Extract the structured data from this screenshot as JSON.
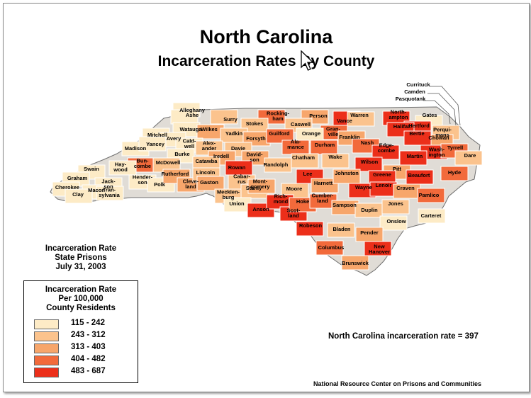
{
  "title": "North Carolina",
  "subtitle": "Incarceration Rates By County",
  "caption": {
    "line1": "Incarceration Rate",
    "line2": "State Prisons",
    "line3": "July 31, 2003"
  },
  "legend": {
    "line1": "Incarceration Rate",
    "line2": "Per 100,000",
    "line3": "County Residents",
    "items": [
      {
        "label": "115 - 242",
        "color": "#fdebc6"
      },
      {
        "label": "243 - 312",
        "color": "#fbc38d"
      },
      {
        "label": "313 - 403",
        "color": "#f7a66b"
      },
      {
        "label": "404 - 482",
        "color": "#f26a3b"
      },
      {
        "label": "483 - 687",
        "color": "#ec2f1a"
      }
    ]
  },
  "state_rate": "North Carolina incarceration rate = 397",
  "source": "National Resource Center on Prisons and Communities",
  "counties": [
    {
      "name": "Currituck",
      "class": 1
    },
    {
      "name": "Camden",
      "class": 1
    },
    {
      "name": "Pasquotank",
      "class": 1
    },
    {
      "name": "Alleghany",
      "class": 1
    },
    {
      "name": "Ashe",
      "class": 1
    },
    {
      "name": "Surry",
      "class": 2
    },
    {
      "name": "Rocking-\nham",
      "class": 4
    },
    {
      "name": "Person",
      "class": 3
    },
    {
      "name": "Vance",
      "class": 5
    },
    {
      "name": "Warren",
      "class": 2
    },
    {
      "name": "North-\nampton",
      "class": 5
    },
    {
      "name": "Gates",
      "class": 1
    },
    {
      "name": "Perqui-\nmans",
      "class": 2
    },
    {
      "name": "Chowan",
      "class": 3
    },
    {
      "name": "Hertford",
      "class": 5
    },
    {
      "name": "Halifax",
      "class": 5
    },
    {
      "name": "Bertie",
      "class": 5
    },
    {
      "name": "Wash-\nington",
      "class": 5
    },
    {
      "name": "Tyrrell",
      "class": 4
    },
    {
      "name": "Dare",
      "class": 2
    },
    {
      "name": "Hyde",
      "class": 4
    },
    {
      "name": "Watauga",
      "class": 1
    },
    {
      "name": "Wilkes",
      "class": 3
    },
    {
      "name": "Stokes",
      "class": 2
    },
    {
      "name": "Caswell",
      "class": 2
    },
    {
      "name": "Gran-\nville",
      "class": 4
    },
    {
      "name": "Franklin",
      "class": 3
    },
    {
      "name": "Orange",
      "class": 1
    },
    {
      "name": "Mitchell",
      "class": 1
    },
    {
      "name": "Avery",
      "class": 1
    },
    {
      "name": "Yadkin",
      "class": 2
    },
    {
      "name": "Forsyth",
      "class": 3
    },
    {
      "name": "Guilford",
      "class": 4
    },
    {
      "name": "Ala-\nmance",
      "class": 4
    },
    {
      "name": "Durham",
      "class": 4
    },
    {
      "name": "Nash",
      "class": 4
    },
    {
      "name": "Edge-\ncombe",
      "class": 5
    },
    {
      "name": "Martin",
      "class": 5
    },
    {
      "name": "Madison",
      "class": 1
    },
    {
      "name": "Yancey",
      "class": 1
    },
    {
      "name": "Cald-\nwell",
      "class": 1
    },
    {
      "name": "Alex-\nander",
      "class": 2
    },
    {
      "name": "Davie",
      "class": 2
    },
    {
      "name": "Burke",
      "class": 1
    },
    {
      "name": "Iredell",
      "class": 3
    },
    {
      "name": "David-\nson",
      "class": 3
    },
    {
      "name": "Randolph",
      "class": 2
    },
    {
      "name": "Chatham",
      "class": 2
    },
    {
      "name": "Wake",
      "class": 2
    },
    {
      "name": "Wilson",
      "class": 5
    },
    {
      "name": "Pitt",
      "class": 3
    },
    {
      "name": "Beaufort",
      "class": 5
    },
    {
      "name": "Bun-\ncombe",
      "class": 4
    },
    {
      "name": "McDowell",
      "class": 2
    },
    {
      "name": "Catawba",
      "class": 2
    },
    {
      "name": "Rowan",
      "class": 5
    },
    {
      "name": "Hay-\nwood",
      "class": 1
    },
    {
      "name": "Swain",
      "class": 1
    },
    {
      "name": "Graham",
      "class": 1
    },
    {
      "name": "Jack-\nson",
      "class": 1
    },
    {
      "name": "Cherokee",
      "class": 1
    },
    {
      "name": "Macon",
      "class": 1
    },
    {
      "name": "Clay",
      "class": 1
    },
    {
      "name": "Tran-\nsylvania",
      "class": 1
    },
    {
      "name": "Hender-\nson",
      "class": 1
    },
    {
      "name": "Polk",
      "class": 1
    },
    {
      "name": "Rutherford",
      "class": 3
    },
    {
      "name": "Cleve-\nland",
      "class": 3
    },
    {
      "name": "Lincoln",
      "class": 2
    },
    {
      "name": "Gaston",
      "class": 3
    },
    {
      "name": "MeckIen-\nburg",
      "class": 2
    },
    {
      "name": "Cabar-\nrus",
      "class": 2
    },
    {
      "name": "Stanly",
      "class": 2
    },
    {
      "name": "Union",
      "class": 1
    },
    {
      "name": "Mont-\ngomery",
      "class": 3
    },
    {
      "name": "Moore",
      "class": 2
    },
    {
      "name": "Lee",
      "class": 5
    },
    {
      "name": "Harnett",
      "class": 3
    },
    {
      "name": "Johnston",
      "class": 3
    },
    {
      "name": "Greene",
      "class": 5
    },
    {
      "name": "Wayne",
      "class": 5
    },
    {
      "name": "Lenoir",
      "class": 5
    },
    {
      "name": "Craven",
      "class": 3
    },
    {
      "name": "Pamlico",
      "class": 4
    },
    {
      "name": "Anson",
      "class": 5
    },
    {
      "name": "Rich-\nmond",
      "class": 5
    },
    {
      "name": "Scot-\nland",
      "class": 5
    },
    {
      "name": "Hoke",
      "class": 4
    },
    {
      "name": "Cumber-\nland",
      "class": 4
    },
    {
      "name": "Sampson",
      "class": 3
    },
    {
      "name": "Duplin",
      "class": 2
    },
    {
      "name": "Jones",
      "class": 2
    },
    {
      "name": "Onslow",
      "class": 1
    },
    {
      "name": "Carteret",
      "class": 1
    },
    {
      "name": "Robeson",
      "class": 5
    },
    {
      "name": "Bladen",
      "class": 2
    },
    {
      "name": "Pender",
      "class": 3
    },
    {
      "name": "Columbus",
      "class": 4
    },
    {
      "name": "New\nHanover",
      "class": 5
    },
    {
      "name": "Brunswick",
      "class": 3
    }
  ]
}
